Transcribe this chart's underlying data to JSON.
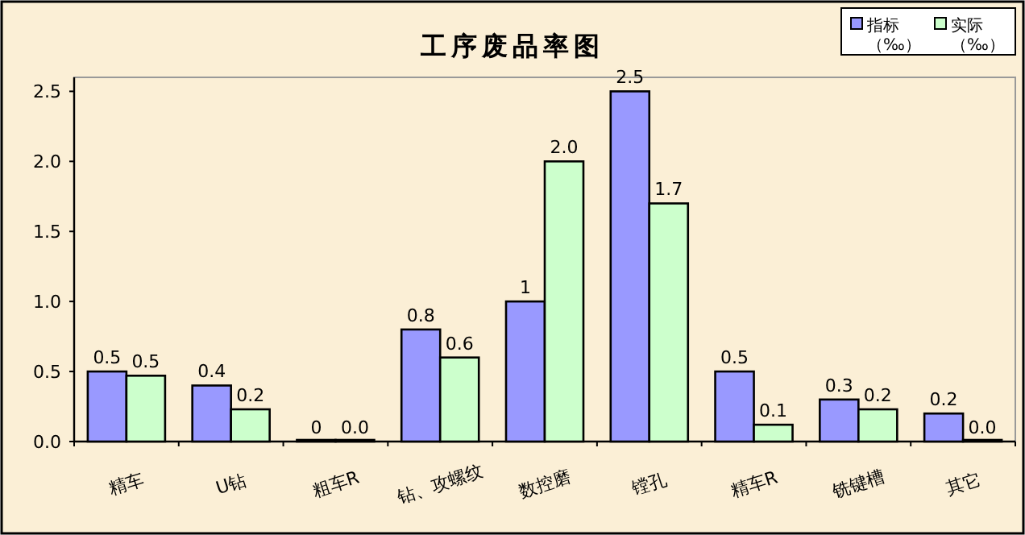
{
  "chart_data": {
    "type": "bar",
    "title": "工序废品率图",
    "categories": [
      "精车",
      "U钻",
      "粗车R",
      "钻、攻螺纹",
      "数控磨",
      "镗孔",
      "精车R",
      "铣键槽",
      "其它"
    ],
    "series": [
      {
        "name": "指标（‰）",
        "color": "#9999ff",
        "values": [
          0.5,
          0.4,
          0,
          0.8,
          1,
          2.5,
          0.5,
          0.3,
          0.2
        ],
        "value_labels": [
          "0.5",
          "0.4",
          "0",
          "0.8",
          "1",
          "2.5",
          "0.5",
          "0.3",
          "0.2"
        ]
      },
      {
        "name": "实际（‰）",
        "color": "#ccffcc",
        "values": [
          0.47,
          0.23,
          0,
          0.6,
          2.0,
          1.7,
          0.12,
          0.23,
          0
        ],
        "value_labels": [
          "0.5",
          "0.2",
          "0.0",
          "0.6",
          "2.0",
          "1.7",
          "0.1",
          "0.2",
          "0.0"
        ]
      }
    ],
    "ylim": [
      0,
      2.6
    ],
    "yticks": [
      {
        "value": 0,
        "label": "0.0"
      },
      {
        "value": 0.5,
        "label": "0.5"
      },
      {
        "value": 1,
        "label": "1.0"
      },
      {
        "value": 1.5,
        "label": "1.5"
      },
      {
        "value": 2,
        "label": "2.0"
      },
      {
        "value": 2.5,
        "label": "2.5"
      }
    ],
    "legend": "top right",
    "grid": false
  }
}
